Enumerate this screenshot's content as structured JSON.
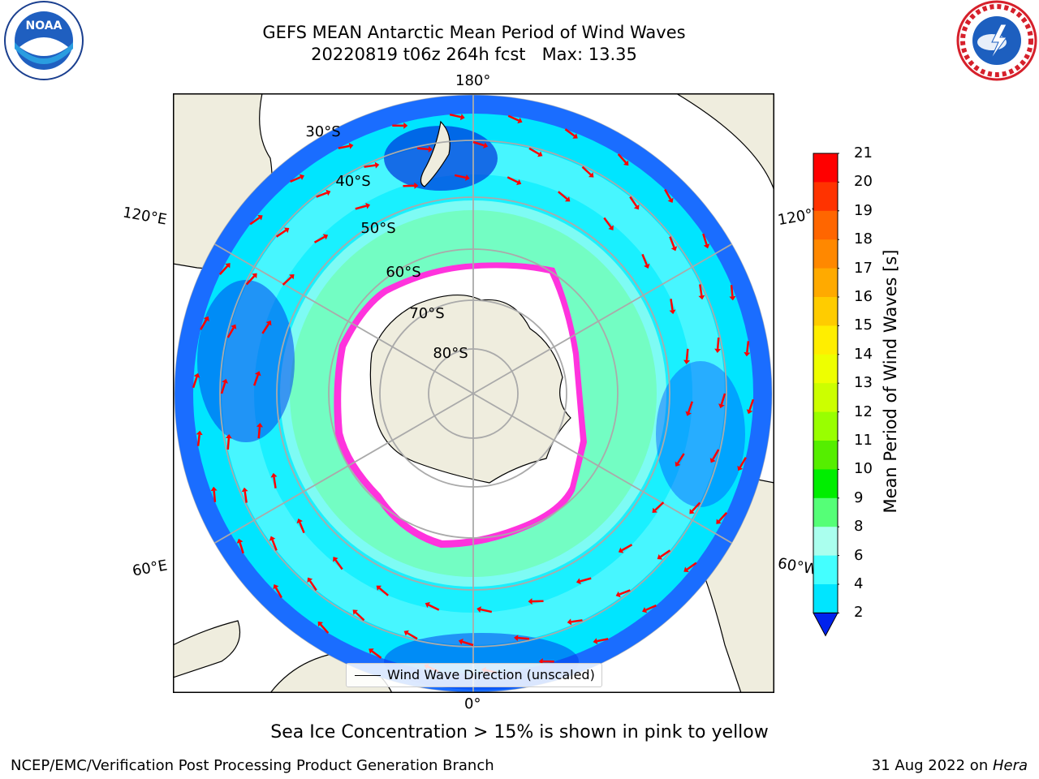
{
  "header": {
    "title_line1": "GEFS MEAN Antarctic Mean Period of Wind Waves",
    "title_line2": "20220819 t06z 264h fcst   Max: 13.35"
  },
  "map": {
    "projection": "south polar stereographic",
    "longitude_labels": {
      "top": "180°",
      "bottom": "0°",
      "upper_left": "120°E",
      "upper_right": "120°W",
      "lower_left": "60°E",
      "lower_right": "60°W"
    },
    "latitude_labels": [
      "30°S",
      "40°S",
      "50°S",
      "60°S",
      "70°S",
      "80°S"
    ],
    "colors": {
      "land": "#efedde",
      "ocean_ring": "#19f0ff",
      "ice_edge": "#ff33dd",
      "arrow": "#ff0000"
    }
  },
  "colorbar": {
    "label": "Mean Period of Wind Waves [s]",
    "ticks": [
      "21",
      "20",
      "19",
      "18",
      "17",
      "16",
      "15",
      "14",
      "13",
      "12",
      "11",
      "10",
      "9",
      "8",
      "6",
      "4",
      "2"
    ],
    "colors": [
      "#ff0000",
      "#ff3300",
      "#ff6600",
      "#ff8800",
      "#ffaa00",
      "#ffcc00",
      "#ffee00",
      "#eeff00",
      "#ccff00",
      "#99ff00",
      "#55ee00",
      "#00ee00",
      "#55ff77",
      "#aaffee",
      "#44ffff",
      "#00e5ff",
      "#0077ff"
    ],
    "extend_color": "#0022ee"
  },
  "legend": {
    "label": "Wind Wave Direction (unscaled)"
  },
  "note": "Sea Ice Concentration > 15% is shown in pink to yellow",
  "footer": {
    "left": "NCEP/EMC/Verification Post Processing Product Generation Branch",
    "right_prefix": "31 Aug 2022 on ",
    "right_italic": "Hera"
  },
  "logos": {
    "left": "noaa-logo",
    "right": "nws-logo"
  }
}
